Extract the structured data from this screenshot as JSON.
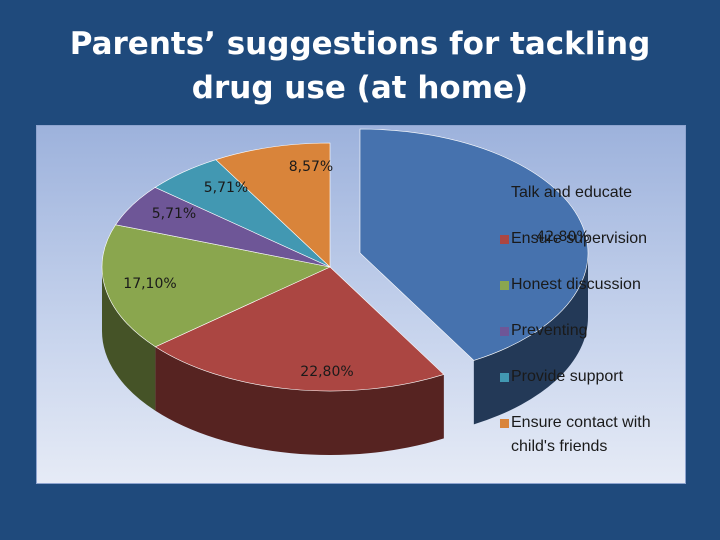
{
  "slide": {
    "title": "Parents’ suggestions for tackling drug use (at home)"
  },
  "chart_data": {
    "type": "pie",
    "title": "",
    "series": [
      {
        "categories": [
          "Talk and educate",
          "Ensure supervision",
          "Honest discussion",
          "Preventing",
          "Provide support",
          "Ensure contact with child's friends"
        ],
        "values": [
          42.8,
          22.8,
          17.1,
          5.71,
          5.71,
          8.57
        ],
        "labels": [
          "42,80%",
          "22,80%",
          "17,10%",
          "5,71%",
          "5,71%",
          "8,57%"
        ],
        "colors": [
          "#4672ae",
          "#ab4642",
          "#8aa64e",
          "#6e5697",
          "#4298b2",
          "#d9843a"
        ]
      }
    ],
    "legend": "right",
    "style": "3d-exploded-first-slice"
  }
}
